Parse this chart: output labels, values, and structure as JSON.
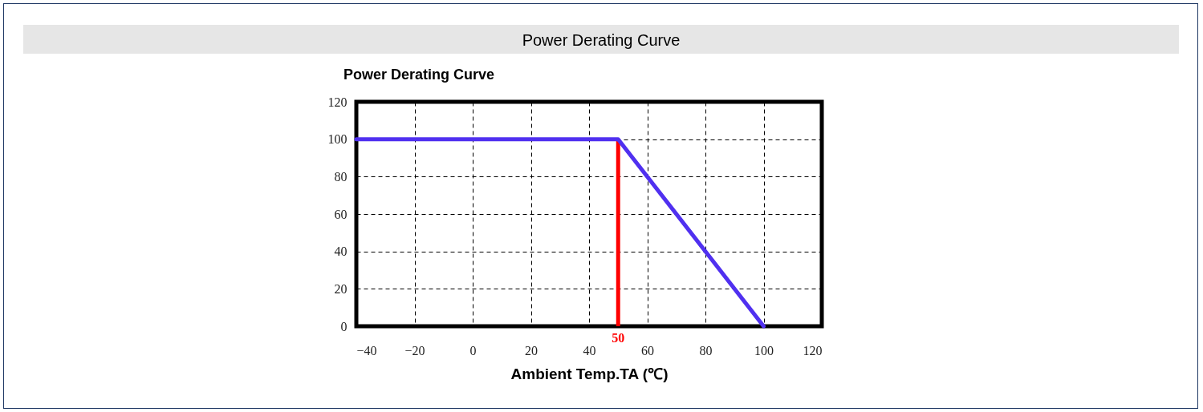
{
  "chart_data": {
    "type": "line",
    "title": "Power Derating Curve",
    "subtitle": "Power Derating Curve",
    "xlabel": "Ambient Temp.TA (℃)",
    "series": [
      {
        "x": [
          -40,
          50,
          100
        ],
        "values": [
          100,
          100,
          0
        ],
        "color": "#5030f0"
      }
    ],
    "xlim": [
      -40,
      120
    ],
    "xticks": [
      -40,
      -20,
      0,
      20,
      40,
      60,
      80,
      100,
      120
    ],
    "ylim": [
      0,
      120
    ],
    "yticks": [
      0,
      20,
      40,
      60,
      80,
      100,
      120
    ],
    "grid": true,
    "line_style": "solid",
    "marker": "none",
    "ref_lines": [
      {
        "axis": "x",
        "value": 50,
        "label": "50",
        "color": "#ff0000"
      }
    ]
  }
}
